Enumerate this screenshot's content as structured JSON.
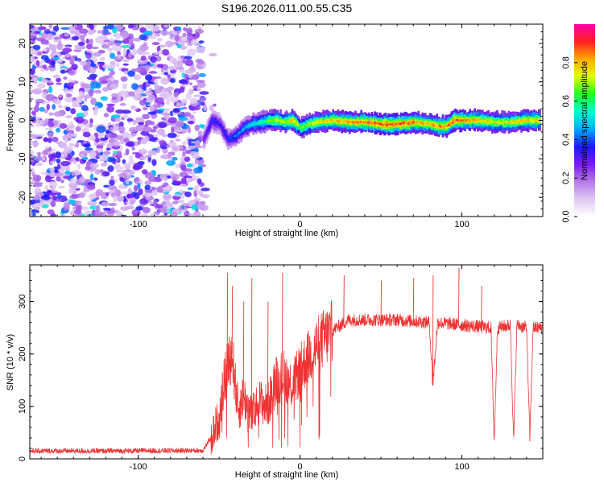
{
  "title": "S196.2026.011.00.55.C35",
  "chart_data": [
    {
      "type": "heatmap",
      "xlabel": "Height of straight line (km)",
      "ylabel": "Frequency (Hz)",
      "xlim": [
        -167,
        150
      ],
      "ylim": [
        -25,
        25
      ],
      "x_ticks": [
        -100,
        0,
        100
      ],
      "y_ticks": [
        -20,
        -10,
        0,
        10,
        20
      ],
      "colorbar": {
        "label": "Normalized spectral amplitude",
        "range": [
          0,
          1
        ],
        "ticks": [
          "0.0",
          "0.2",
          "0.4",
          "0.6",
          "0.8"
        ],
        "tick_values": [
          0,
          0.2,
          0.4,
          0.6,
          0.8
        ],
        "colors": [
          "#ffffff",
          "#e0c8f4",
          "#b478e8",
          "#7a1cf0",
          "#1a1aff",
          "#00aaff",
          "#00ffcc",
          "#22ff22",
          "#ddff00",
          "#ffaa00",
          "#ff2020",
          "#ff00aa"
        ]
      },
      "noise_region": {
        "x": [
          -167,
          -60
        ],
        "y": [
          -25,
          25
        ],
        "amplitude": 0.15
      },
      "ridge": {
        "x": [
          -60,
          -55,
          -50,
          -45,
          -40,
          -35,
          -30,
          -25,
          -20,
          -15,
          -10,
          -5,
          0,
          5,
          10,
          20,
          30,
          40,
          50,
          60,
          70,
          80,
          85,
          90,
          95,
          100,
          110,
          120,
          130,
          140,
          148
        ],
        "y": [
          -5,
          0,
          -1,
          -5,
          -4,
          -2,
          -1,
          -0.5,
          0,
          0,
          -0.5,
          0,
          -2,
          -1,
          -0.5,
          0,
          -0.5,
          -0.5,
          -1,
          -1,
          -0.5,
          -1,
          -1.5,
          -1.5,
          0,
          0,
          0,
          -0.5,
          -0.5,
          0,
          0
        ],
        "amplitude": [
          0.3,
          0.4,
          0.35,
          0.4,
          0.45,
          0.5,
          0.55,
          0.6,
          0.7,
          0.8,
          0.75,
          0.85,
          0.7,
          0.75,
          0.8,
          0.85,
          0.9,
          0.9,
          0.95,
          0.95,
          0.9,
          0.85,
          0.9,
          0.9,
          0.95,
          0.9,
          0.85,
          0.8,
          0.8,
          0.85,
          0.85
        ]
      }
    },
    {
      "type": "line",
      "xlabel": "Height of straight line (km)",
      "ylabel": "SNR (10 * v/v)",
      "xlim": [
        -167,
        150
      ],
      "ylim": [
        0,
        370
      ],
      "x_ticks": [
        -100,
        0,
        100
      ],
      "y_ticks": [
        0,
        100,
        200,
        300
      ],
      "series": [
        {
          "color": "#ee3333",
          "x": [
            -167,
            -120,
            -60,
            -55,
            -50,
            -45,
            -42,
            -40,
            -38,
            -35,
            -30,
            -25,
            -20,
            -15,
            -10,
            -5,
            0,
            10,
            20,
            30,
            40,
            60,
            80,
            82,
            85,
            100,
            118,
            120,
            122,
            130,
            132,
            134,
            140,
            142,
            144,
            150
          ],
          "values": [
            15,
            15,
            16,
            40,
            80,
            180,
            200,
            140,
            90,
            120,
            80,
            110,
            100,
            150,
            160,
            140,
            170,
            215,
            245,
            265,
            265,
            265,
            260,
            140,
            260,
            255,
            250,
            30,
            250,
            255,
            30,
            255,
            250,
            40,
            250,
            250
          ],
          "spikes": [
            {
              "x": -45,
              "y": 355
            },
            {
              "x": -42,
              "y": 330
            },
            {
              "x": -35,
              "y": 300
            },
            {
              "x": -30,
              "y": 345
            },
            {
              "x": -20,
              "y": 300
            },
            {
              "x": -11,
              "y": 355
            },
            {
              "x": 27,
              "y": 350
            },
            {
              "x": 50,
              "y": 340
            },
            {
              "x": 70,
              "y": 345
            },
            {
              "x": 82,
              "y": 350
            },
            {
              "x": 98,
              "y": 365
            },
            {
              "x": 112,
              "y": 330
            }
          ]
        }
      ]
    }
  ]
}
